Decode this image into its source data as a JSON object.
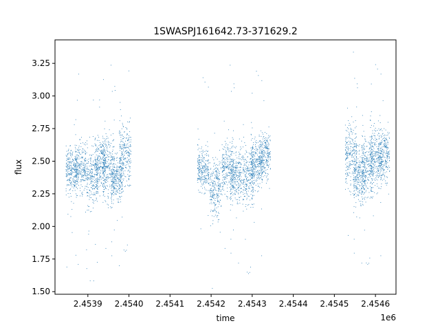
{
  "chart_data": {
    "type": "scatter",
    "title": "1SWASPJ161642.73-371629.2",
    "xlabel": "time",
    "ylabel": "flux",
    "x_offset_label": "1e6",
    "xlim": [
      2.45382,
      2.45465
    ],
    "ylim": [
      1.48,
      3.43
    ],
    "x_ticks": [
      2.4539,
      2.454,
      2.4541,
      2.4542,
      2.4543,
      2.4544,
      2.4545,
      2.4546
    ],
    "x_tick_labels": [
      "2.4539",
      "2.4540",
      "2.4541",
      "2.4542",
      "2.4543",
      "2.4544",
      "2.4545",
      "2.4546"
    ],
    "y_ticks": [
      1.5,
      1.75,
      2.0,
      2.25,
      2.5,
      2.75,
      3.0,
      3.25
    ],
    "y_tick_labels": [
      "1.50",
      "1.75",
      "2.00",
      "2.25",
      "2.50",
      "2.75",
      "3.00",
      "3.25"
    ],
    "grid": false,
    "marker_color": "#1f77b4",
    "series": [
      {
        "clusters": [
          {
            "x": 2.45386,
            "y": 2.42,
            "spread": 0.12
          },
          {
            "x": 2.45388,
            "y": 2.45,
            "spread": 0.13
          },
          {
            "x": 2.45391,
            "y": 2.38,
            "spread": 0.16
          },
          {
            "x": 2.45393,
            "y": 2.5,
            "spread": 0.14
          },
          {
            "x": 2.45395,
            "y": 2.45,
            "spread": 0.18
          },
          {
            "x": 2.45397,
            "y": 2.38,
            "spread": 0.13
          },
          {
            "x": 2.45399,
            "y": 2.55,
            "spread": 0.17
          },
          {
            "x": 2.45418,
            "y": 2.45,
            "spread": 0.12
          },
          {
            "x": 2.45421,
            "y": 2.3,
            "spread": 0.16
          },
          {
            "x": 2.45424,
            "y": 2.45,
            "spread": 0.14
          },
          {
            "x": 2.45426,
            "y": 2.4,
            "spread": 0.15
          },
          {
            "x": 2.45429,
            "y": 2.38,
            "spread": 0.15
          },
          {
            "x": 2.45431,
            "y": 2.5,
            "spread": 0.14
          },
          {
            "x": 2.45433,
            "y": 2.55,
            "spread": 0.12
          },
          {
            "x": 2.45454,
            "y": 2.55,
            "spread": 0.18
          },
          {
            "x": 2.45456,
            "y": 2.4,
            "spread": 0.16
          },
          {
            "x": 2.45458,
            "y": 2.45,
            "spread": 0.16
          },
          {
            "x": 2.4546,
            "y": 2.55,
            "spread": 0.18
          },
          {
            "x": 2.45462,
            "y": 2.55,
            "spread": 0.14
          }
        ]
      }
    ]
  }
}
